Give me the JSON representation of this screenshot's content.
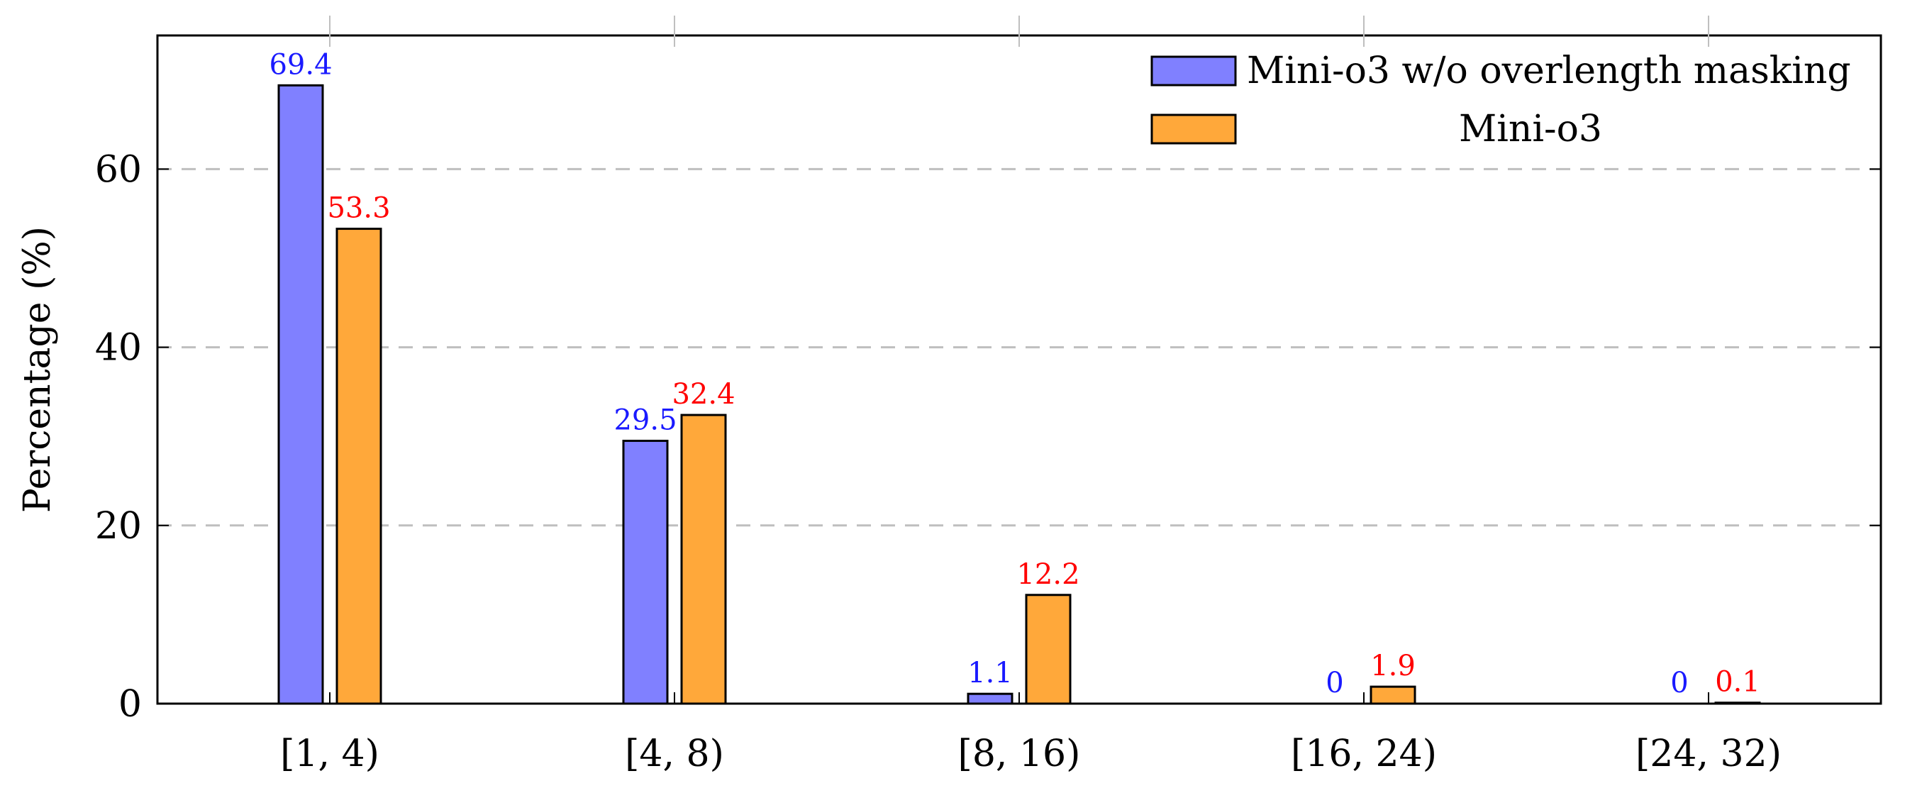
{
  "chart_data": {
    "type": "bar",
    "title": "",
    "xlabel": "",
    "ylabel": "Percentage (%)",
    "ylim": [
      0,
      75
    ],
    "yticks": [
      0,
      20,
      40,
      60
    ],
    "grid": "horizontal-dashed",
    "legend_position": "top-right",
    "categories": [
      "[1, 4)",
      "[4, 8)",
      "[8, 16)",
      "[16, 24)",
      "[24, 32)"
    ],
    "series": [
      {
        "name": "Mini-o3 w/o overlength masking",
        "values": [
          69.4,
          29.5,
          1.1,
          0,
          0
        ],
        "labels": [
          "69.4",
          "29.5",
          "1.1",
          "0",
          "0"
        ],
        "fill": "#8080ff",
        "label_color": "#1a1aff"
      },
      {
        "name": "Mini-o3",
        "values": [
          53.3,
          32.4,
          12.2,
          1.9,
          0.1
        ],
        "labels": [
          "53.3",
          "32.4",
          "12.2",
          "1.9",
          "0.1"
        ],
        "fill": "#ffa83a",
        "label_color": "#ff0000"
      }
    ]
  }
}
